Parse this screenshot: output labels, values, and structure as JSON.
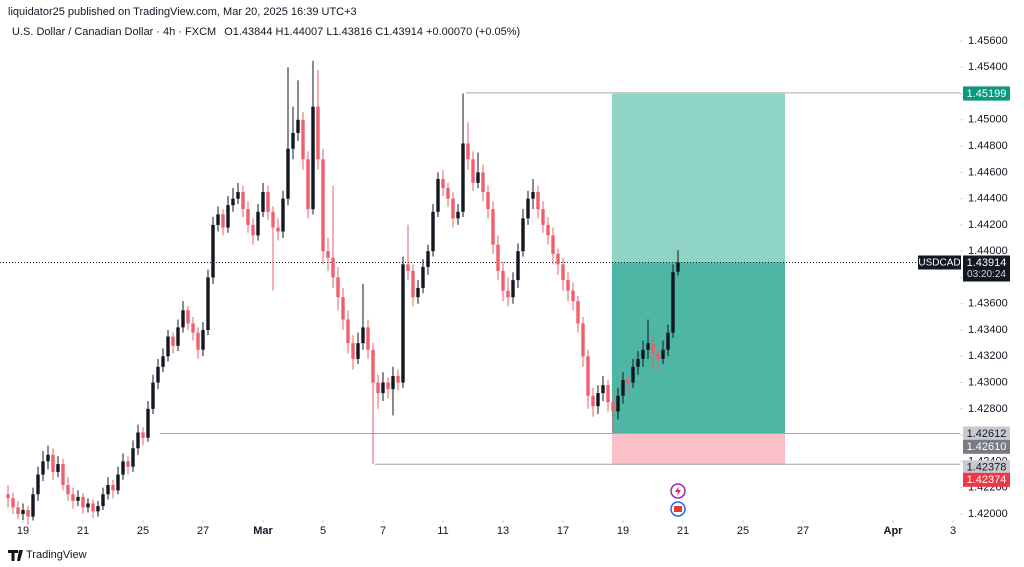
{
  "header": {
    "published": "liquidator25 published on TradingView.com, Mar 20, 2025 16:39 UTC+3"
  },
  "chart_data": {
    "type": "candlestick",
    "title": "U.S. Dollar / Canadian Dollar · 4h · FXCM",
    "legend_values": "O1.43844 H1.44007 L1.43816 C1.43914 +0.00070 (+0.05%)",
    "symbol": "USDCAD",
    "countdown": "03:20:24",
    "up_color": "#131722",
    "down_color": "#ef5f6c",
    "ohlc": [
      [
        1.4215,
        1.4222,
        1.4205,
        1.4212
      ],
      [
        1.4212,
        1.4216,
        1.42,
        1.4205
      ],
      [
        1.4205,
        1.421,
        1.4196,
        1.42
      ],
      [
        1.42,
        1.4208,
        1.4195,
        1.4203
      ],
      [
        1.4203,
        1.4206,
        1.4192,
        1.4198
      ],
      [
        1.4198,
        1.422,
        1.4195,
        1.4215
      ],
      [
        1.4215,
        1.4236,
        1.421,
        1.423
      ],
      [
        1.423,
        1.4248,
        1.4225,
        1.424
      ],
      [
        1.424,
        1.4252,
        1.4234,
        1.4245
      ],
      [
        1.4245,
        1.425,
        1.4226,
        1.4232
      ],
      [
        1.4232,
        1.4244,
        1.4228,
        1.4238
      ],
      [
        1.4238,
        1.4242,
        1.4218,
        1.4222
      ],
      [
        1.4222,
        1.4228,
        1.421,
        1.4215
      ],
      [
        1.4215,
        1.422,
        1.4204,
        1.421
      ],
      [
        1.421,
        1.4218,
        1.4206,
        1.4213
      ],
      [
        1.4213,
        1.4216,
        1.42,
        1.4205
      ],
      [
        1.4205,
        1.4212,
        1.4201,
        1.4208
      ],
      [
        1.4208,
        1.4211,
        1.4197,
        1.4202
      ],
      [
        1.4202,
        1.421,
        1.4198,
        1.4206
      ],
      [
        1.4206,
        1.422,
        1.4203,
        1.4215
      ],
      [
        1.4215,
        1.4228,
        1.4211,
        1.4222
      ],
      [
        1.4222,
        1.4226,
        1.4212,
        1.4218
      ],
      [
        1.4218,
        1.4236,
        1.4215,
        1.423
      ],
      [
        1.423,
        1.4246,
        1.4226,
        1.424
      ],
      [
        1.424,
        1.4244,
        1.423,
        1.4236
      ],
      [
        1.4236,
        1.4256,
        1.4232,
        1.425
      ],
      [
        1.425,
        1.4268,
        1.4245,
        1.4262
      ],
      [
        1.4262,
        1.4266,
        1.4252,
        1.4258
      ],
      [
        1.4258,
        1.4286,
        1.4255,
        1.428
      ],
      [
        1.428,
        1.4306,
        1.4276,
        1.43
      ],
      [
        1.43,
        1.4318,
        1.4295,
        1.4312
      ],
      [
        1.4312,
        1.4326,
        1.4308,
        1.432
      ],
      [
        1.432,
        1.434,
        1.4316,
        1.4335
      ],
      [
        1.4335,
        1.4338,
        1.4322,
        1.4328
      ],
      [
        1.4328,
        1.4348,
        1.4324,
        1.4342
      ],
      [
        1.4342,
        1.4362,
        1.4338,
        1.4355
      ],
      [
        1.4355,
        1.4358,
        1.434,
        1.4345
      ],
      [
        1.4345,
        1.435,
        1.4332,
        1.4338
      ],
      [
        1.4338,
        1.4342,
        1.4318,
        1.4325
      ],
      [
        1.4325,
        1.4346,
        1.432,
        1.434
      ],
      [
        1.434,
        1.4386,
        1.4336,
        1.438
      ],
      [
        1.438,
        1.4426,
        1.4375,
        1.442
      ],
      [
        1.442,
        1.4434,
        1.4415,
        1.4428
      ],
      [
        1.4428,
        1.4432,
        1.4412,
        1.4418
      ],
      [
        1.4418,
        1.4442,
        1.4414,
        1.4435
      ],
      [
        1.4435,
        1.4448,
        1.443,
        1.444
      ],
      [
        1.444,
        1.4452,
        1.4436,
        1.4445
      ],
      [
        1.4445,
        1.445,
        1.4426,
        1.4432
      ],
      [
        1.4432,
        1.4438,
        1.4414,
        1.442
      ],
      [
        1.442,
        1.4425,
        1.4405,
        1.4412
      ],
      [
        1.4412,
        1.4436,
        1.4408,
        1.443
      ],
      [
        1.443,
        1.4452,
        1.4426,
        1.4445
      ],
      [
        1.4445,
        1.445,
        1.4424,
        1.443
      ],
      [
        1.443,
        1.4434,
        1.437,
        1.4418
      ],
      [
        1.4418,
        1.4425,
        1.4408,
        1.4415
      ],
      [
        1.4415,
        1.4446,
        1.441,
        1.444
      ],
      [
        1.444,
        1.454,
        1.4435,
        1.4478
      ],
      [
        1.4478,
        1.451,
        1.447,
        1.449
      ],
      [
        1.449,
        1.453,
        1.4484,
        1.45
      ],
      [
        1.45,
        1.4506,
        1.4462,
        1.447
      ],
      [
        1.447,
        1.4476,
        1.4425,
        1.4432
      ],
      [
        1.4432,
        1.4545,
        1.4428,
        1.451
      ],
      [
        1.451,
        1.4538,
        1.4462,
        1.447
      ],
      [
        1.447,
        1.4478,
        1.439,
        1.44
      ],
      [
        1.44,
        1.441,
        1.4385,
        1.4395
      ],
      [
        1.4395,
        1.445,
        1.4372,
        1.438
      ],
      [
        1.438,
        1.4388,
        1.4355,
        1.4365
      ],
      [
        1.4365,
        1.4372,
        1.434,
        1.4348
      ],
      [
        1.4348,
        1.4355,
        1.4322,
        1.433
      ],
      [
        1.433,
        1.4336,
        1.431,
        1.4318
      ],
      [
        1.4318,
        1.4338,
        1.4314,
        1.433
      ],
      [
        1.433,
        1.4375,
        1.4325,
        1.4342
      ],
      [
        1.4342,
        1.4348,
        1.4318,
        1.4325
      ],
      [
        1.4325,
        1.433,
        1.4238,
        1.43
      ],
      [
        1.43,
        1.4306,
        1.428,
        1.4292
      ],
      [
        1.4292,
        1.4308,
        1.4286,
        1.43
      ],
      [
        1.43,
        1.4304,
        1.4288,
        1.4295
      ],
      [
        1.4295,
        1.4312,
        1.4275,
        1.4305
      ],
      [
        1.4305,
        1.431,
        1.4294,
        1.43
      ],
      [
        1.43,
        1.4396,
        1.4296,
        1.439
      ],
      [
        1.439,
        1.442,
        1.4378,
        1.4385
      ],
      [
        1.4385,
        1.439,
        1.4358,
        1.4365
      ],
      [
        1.4365,
        1.4378,
        1.436,
        1.4372
      ],
      [
        1.4372,
        1.4394,
        1.4368,
        1.4388
      ],
      [
        1.4388,
        1.4405,
        1.4382,
        1.44
      ],
      [
        1.44,
        1.4436,
        1.4396,
        1.443
      ],
      [
        1.443,
        1.446,
        1.4426,
        1.4455
      ],
      [
        1.4455,
        1.4462,
        1.4442,
        1.4448
      ],
      [
        1.4448,
        1.4452,
        1.4434,
        1.444
      ],
      [
        1.444,
        1.4445,
        1.4418,
        1.4425
      ],
      [
        1.4425,
        1.4436,
        1.442,
        1.443
      ],
      [
        1.443,
        1.452,
        1.4426,
        1.4482
      ],
      [
        1.4482,
        1.4498,
        1.4462,
        1.447
      ],
      [
        1.447,
        1.4476,
        1.4446,
        1.4452
      ],
      [
        1.4452,
        1.4475,
        1.4448,
        1.446
      ],
      [
        1.446,
        1.4466,
        1.4438,
        1.4445
      ],
      [
        1.4445,
        1.445,
        1.4425,
        1.4432
      ],
      [
        1.4432,
        1.4438,
        1.4398,
        1.4405
      ],
      [
        1.4405,
        1.4412,
        1.4378,
        1.4385
      ],
      [
        1.4385,
        1.4392,
        1.4362,
        1.437
      ],
      [
        1.437,
        1.438,
        1.4358,
        1.4365
      ],
      [
        1.4365,
        1.4384,
        1.436,
        1.4378
      ],
      [
        1.4378,
        1.4406,
        1.4372,
        1.44
      ],
      [
        1.44,
        1.4432,
        1.4396,
        1.4425
      ],
      [
        1.4425,
        1.4446,
        1.442,
        1.444
      ],
      [
        1.444,
        1.4455,
        1.4432,
        1.4445
      ],
      [
        1.4445,
        1.445,
        1.4425,
        1.4432
      ],
      [
        1.4432,
        1.4438,
        1.4414,
        1.442
      ],
      [
        1.442,
        1.4426,
        1.4405,
        1.4412
      ],
      [
        1.4412,
        1.4418,
        1.439,
        1.4398
      ],
      [
        1.4398,
        1.4402,
        1.4382,
        1.439
      ],
      [
        1.439,
        1.4395,
        1.437,
        1.4378
      ],
      [
        1.4378,
        1.4384,
        1.4362,
        1.437
      ],
      [
        1.437,
        1.4376,
        1.4355,
        1.4362
      ],
      [
        1.4362,
        1.4366,
        1.4338,
        1.4345
      ],
      [
        1.4345,
        1.435,
        1.4312,
        1.432
      ],
      [
        1.432,
        1.4325,
        1.428,
        1.429
      ],
      [
        1.429,
        1.4296,
        1.4274,
        1.4282
      ],
      [
        1.4282,
        1.4298,
        1.4276,
        1.4292
      ],
      [
        1.4292,
        1.4305,
        1.4286,
        1.4298
      ],
      [
        1.4298,
        1.4302,
        1.4278,
        1.4285
      ],
      [
        1.4285,
        1.429,
        1.4261,
        1.4278
      ],
      [
        1.4278,
        1.4296,
        1.4272,
        1.429
      ],
      [
        1.429,
        1.4308,
        1.4284,
        1.4302
      ],
      [
        1.4302,
        1.4306,
        1.4292,
        1.43
      ],
      [
        1.43,
        1.4318,
        1.4296,
        1.4312
      ],
      [
        1.4312,
        1.4324,
        1.4306,
        1.4318
      ],
      [
        1.4318,
        1.4332,
        1.4312,
        1.4325
      ],
      [
        1.4325,
        1.4348,
        1.4318,
        1.433
      ],
      [
        1.433,
        1.4336,
        1.431,
        1.4322
      ],
      [
        1.4322,
        1.4326,
        1.4308,
        1.4318
      ],
      [
        1.4318,
        1.4332,
        1.4314,
        1.4325
      ],
      [
        1.4325,
        1.4344,
        1.432,
        1.4338
      ],
      [
        1.4338,
        1.439,
        1.4334,
        1.4384
      ],
      [
        1.43844,
        1.44007,
        1.43816,
        1.43914
      ]
    ],
    "ylim": [
      1.41954,
      1.45912
    ],
    "yticks": [
      {
        "value": 1.456,
        "label": "1.45600"
      },
      {
        "value": 1.454,
        "label": "1.45400"
      },
      {
        "value": 1.452,
        "label": "1.45200"
      },
      {
        "value": 1.45,
        "label": "1.45000"
      },
      {
        "value": 1.448,
        "label": "1.44800"
      },
      {
        "value": 1.446,
        "label": "1.44600"
      },
      {
        "value": 1.444,
        "label": "1.44400"
      },
      {
        "value": 1.442,
        "label": "1.44200"
      },
      {
        "value": 1.44,
        "label": "1.44000"
      },
      {
        "value": 1.438,
        "label": "1.43800"
      },
      {
        "value": 1.436,
        "label": "1.43600"
      },
      {
        "value": 1.434,
        "label": "1.43400"
      },
      {
        "value": 1.432,
        "label": "1.43200"
      },
      {
        "value": 1.43,
        "label": "1.43000"
      },
      {
        "value": 1.428,
        "label": "1.42800"
      },
      {
        "value": 1.426,
        "label": "1.42600"
      },
      {
        "value": 1.424,
        "label": "1.42400"
      },
      {
        "value": 1.422,
        "label": "1.42200"
      },
      {
        "value": 1.42,
        "label": "1.42000"
      }
    ],
    "xlim": [
      -1.6,
      190.4
    ],
    "xticks": [
      {
        "value": 3,
        "label": "19"
      },
      {
        "value": 15,
        "label": "21"
      },
      {
        "value": 27,
        "label": "25"
      },
      {
        "value": 39,
        "label": "27"
      },
      {
        "value": 51,
        "label": "Mar"
      },
      {
        "value": 63,
        "label": "5"
      },
      {
        "value": 75,
        "label": "7"
      },
      {
        "value": 87,
        "label": "11"
      },
      {
        "value": 99,
        "label": "13"
      },
      {
        "value": 111,
        "label": "17"
      },
      {
        "value": 123,
        "label": "19"
      },
      {
        "value": 135,
        "label": "21"
      },
      {
        "value": 147,
        "label": "25"
      },
      {
        "value": 159,
        "label": "27"
      },
      {
        "value": 177,
        "label": "Apr"
      },
      {
        "value": 189,
        "label": "3"
      }
    ],
    "hlines": [
      {
        "value": 1.45205,
        "start": 91.6
      },
      {
        "value": 1.42612,
        "start": 30.4
      },
      {
        "value": 1.42378,
        "start": 73.4
      }
    ],
    "position": {
      "start": 120.8,
      "end": 155.4,
      "target": 1.45199,
      "entry": {
        "value": 1.4261,
        "label": "1.42610"
      },
      "stop": 1.42374,
      "profit_color": "#8fd3c4",
      "active_color": "#4db6a4",
      "stop_color": "#fbc1c8",
      "target_color": "#089981",
      "entry_color": "#787b86",
      "stop_label_color": "#f23645"
    }
  },
  "footer": {
    "brand": "TradingView"
  }
}
